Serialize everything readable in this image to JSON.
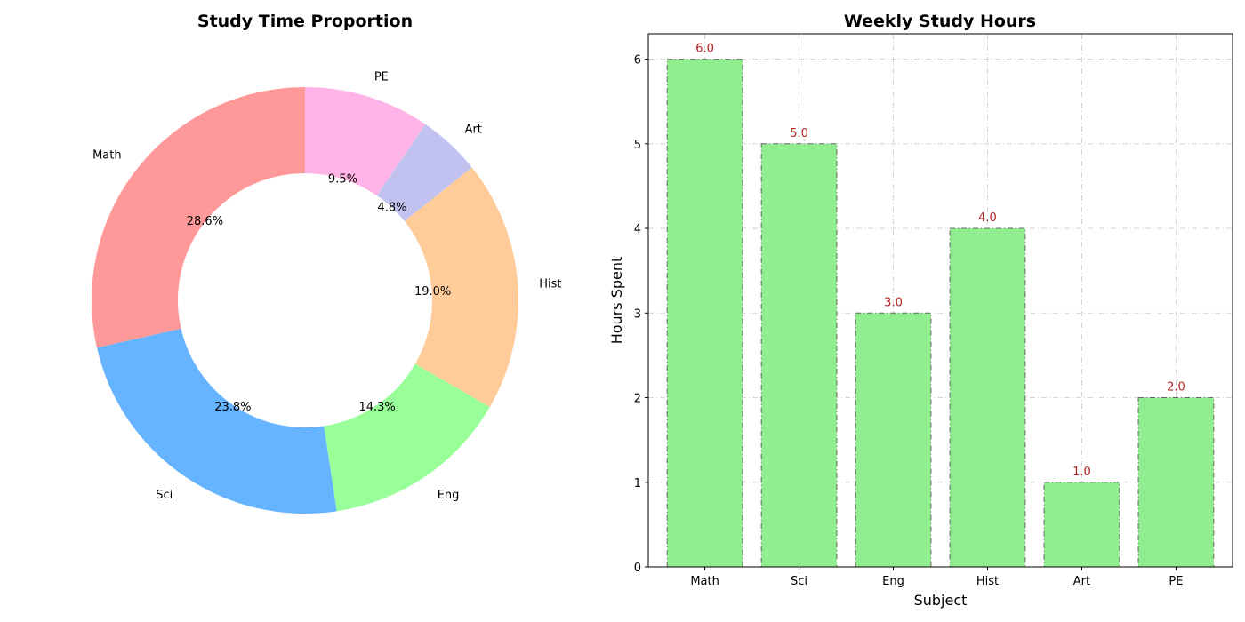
{
  "chart_data": [
    {
      "type": "pie",
      "title": "Study Time Proportion",
      "donut": true,
      "categories": [
        "Math",
        "Sci",
        "Eng",
        "Hist",
        "Art",
        "PE"
      ],
      "values": [
        6,
        5,
        3,
        4,
        1,
        2
      ],
      "percent_labels": [
        "28.6%",
        "23.8%",
        "14.3%",
        "19.0%",
        "4.8%",
        "9.5%"
      ],
      "colors": [
        "#ff9999",
        "#66b3ff",
        "#99ff99",
        "#ffcc99",
        "#c2c2f0",
        "#ffb3e6"
      ],
      "start_angle_deg": 90,
      "direction": "counterclockwise"
    },
    {
      "type": "bar",
      "title": "Weekly Study Hours",
      "categories": [
        "Math",
        "Sci",
        "Eng",
        "Hist",
        "Art",
        "PE"
      ],
      "values": [
        6.0,
        5.0,
        3.0,
        4.0,
        1.0,
        2.0
      ],
      "value_labels": [
        "6.0",
        "5.0",
        "3.0",
        "4.0",
        "1.0",
        "2.0"
      ],
      "xlabel": "Subject",
      "ylabel": "Hours Spent",
      "ylim": [
        0,
        6.3
      ],
      "yticks": [
        0,
        1,
        2,
        3,
        4,
        5,
        6
      ],
      "grid": true,
      "bar_color": "#90ee90",
      "value_label_color": "#b22222"
    }
  ]
}
